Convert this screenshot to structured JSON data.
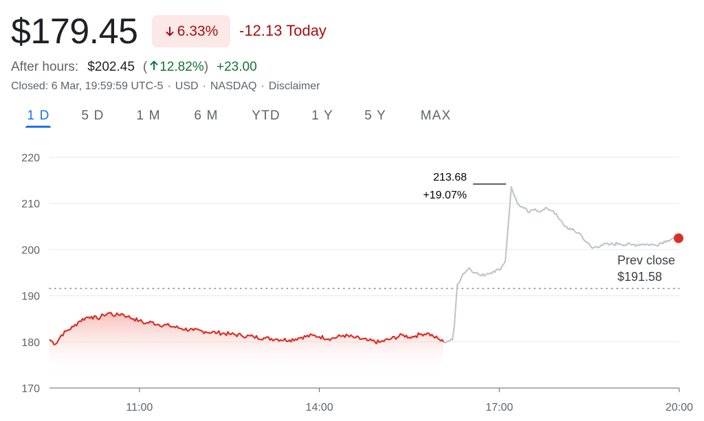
{
  "quote": {
    "price": "$179.45",
    "change_pct": "6.33%",
    "change_today": "-12.13 Today",
    "after_hours_label": "After hours:",
    "after_hours_price": "$202.45",
    "after_hours_paren_open": "(",
    "after_hours_pct": "12.82%",
    "after_hours_paren_close": ")",
    "after_hours_change": "+23.00",
    "closed_parts": [
      "Closed: 6 Mar, 19:59:59 UTC-5",
      "USD",
      "NASDAQ",
      "Disclaimer"
    ],
    "separator": "·"
  },
  "tabs": [
    {
      "label": "1 D",
      "active": true
    },
    {
      "label": "5 D",
      "active": false
    },
    {
      "label": "1 M",
      "active": false
    },
    {
      "label": "6 M",
      "active": false
    },
    {
      "label": "YTD",
      "active": false
    },
    {
      "label": "1 Y",
      "active": false
    },
    {
      "label": "5 Y",
      "active": false
    },
    {
      "label": "MAX",
      "active": false
    }
  ],
  "icons": {
    "change_badge": "arrow-down-icon",
    "after_hours": "arrow-up-icon"
  },
  "colors": {
    "negative": "#a50e0e",
    "negative_line": "#d93025",
    "positive": "#137333",
    "after_hours_line": "#bdc1c6",
    "accent": "#1a73e8"
  },
  "chart_data": {
    "type": "line",
    "ylim": [
      170,
      220
    ],
    "yticks": [
      170,
      180,
      190,
      200,
      210,
      220
    ],
    "xlim": [
      9.5,
      20
    ],
    "xticks": [
      11,
      14,
      17,
      20
    ],
    "xtick_labels": [
      "11:00",
      "14:00",
      "17:00",
      "20:00"
    ],
    "prev_close": 191.58,
    "prev_close_label_line1": "Prev close",
    "prev_close_label_line2": "$191.58",
    "annotation": {
      "x": 17.2,
      "y": 213.68,
      "value": "213.68",
      "pct": "+19.07%"
    },
    "series": [
      {
        "session": "regular",
        "points": [
          [
            9.5,
            180.5
          ],
          [
            9.6,
            179.5
          ],
          [
            9.7,
            181.5
          ],
          [
            9.8,
            182.5
          ],
          [
            9.9,
            183.3
          ],
          [
            10.0,
            184.5
          ],
          [
            10.1,
            185.2
          ],
          [
            10.2,
            185.5
          ],
          [
            10.3,
            185.0
          ],
          [
            10.4,
            185.8
          ],
          [
            10.5,
            186.3
          ],
          [
            10.6,
            185.7
          ],
          [
            10.7,
            186.1
          ],
          [
            10.8,
            185.5
          ],
          [
            10.9,
            185.0
          ],
          [
            11.0,
            184.6
          ],
          [
            11.1,
            184.0
          ],
          [
            11.2,
            184.3
          ],
          [
            11.3,
            183.8
          ],
          [
            11.5,
            183.5
          ],
          [
            11.7,
            182.9
          ],
          [
            11.9,
            182.5
          ],
          [
            12.1,
            182.2
          ],
          [
            12.3,
            182.0
          ],
          [
            12.5,
            181.7
          ],
          [
            12.7,
            181.4
          ],
          [
            12.9,
            181.1
          ],
          [
            13.1,
            180.8
          ],
          [
            13.3,
            180.6
          ],
          [
            13.5,
            180.4
          ],
          [
            13.7,
            181.0
          ],
          [
            13.9,
            181.4
          ],
          [
            14.0,
            181.1
          ],
          [
            14.2,
            180.7
          ],
          [
            14.4,
            181.4
          ],
          [
            14.6,
            180.9
          ],
          [
            14.8,
            180.3
          ],
          [
            15.0,
            179.9
          ],
          [
            15.2,
            180.7
          ],
          [
            15.4,
            181.5
          ],
          [
            15.5,
            181.0
          ],
          [
            15.6,
            181.3
          ],
          [
            15.7,
            181.7
          ],
          [
            15.8,
            181.9
          ],
          [
            15.9,
            181.2
          ],
          [
            16.0,
            180.5
          ],
          [
            16.07,
            180.0
          ]
        ]
      },
      {
        "session": "after_hours",
        "points": [
          [
            16.07,
            180.0
          ],
          [
            16.15,
            180.2
          ],
          [
            16.22,
            180.4
          ],
          [
            16.25,
            183.5
          ],
          [
            16.3,
            192.5
          ],
          [
            16.4,
            194.8
          ],
          [
            16.5,
            196.0
          ],
          [
            16.6,
            195.0
          ],
          [
            16.7,
            194.3
          ],
          [
            16.8,
            194.8
          ],
          [
            16.9,
            195.3
          ],
          [
            17.0,
            195.6
          ],
          [
            17.1,
            197.5
          ],
          [
            17.2,
            213.6
          ],
          [
            17.3,
            210.0
          ],
          [
            17.4,
            209.0
          ],
          [
            17.5,
            208.0
          ],
          [
            17.6,
            208.8
          ],
          [
            17.7,
            208.3
          ],
          [
            17.8,
            208.9
          ],
          [
            17.9,
            208.4
          ],
          [
            18.0,
            206.5
          ],
          [
            18.1,
            205.0
          ],
          [
            18.2,
            204.3
          ],
          [
            18.35,
            203.4
          ],
          [
            18.45,
            201.6
          ],
          [
            18.55,
            200.3
          ],
          [
            18.7,
            201.0
          ],
          [
            18.85,
            201.1
          ],
          [
            19.0,
            201.3
          ],
          [
            19.2,
            201.0
          ],
          [
            19.4,
            201.2
          ],
          [
            19.6,
            201.0
          ],
          [
            19.8,
            202.0
          ],
          [
            19.9,
            202.5
          ],
          [
            20.0,
            202.45
          ]
        ]
      }
    ]
  }
}
